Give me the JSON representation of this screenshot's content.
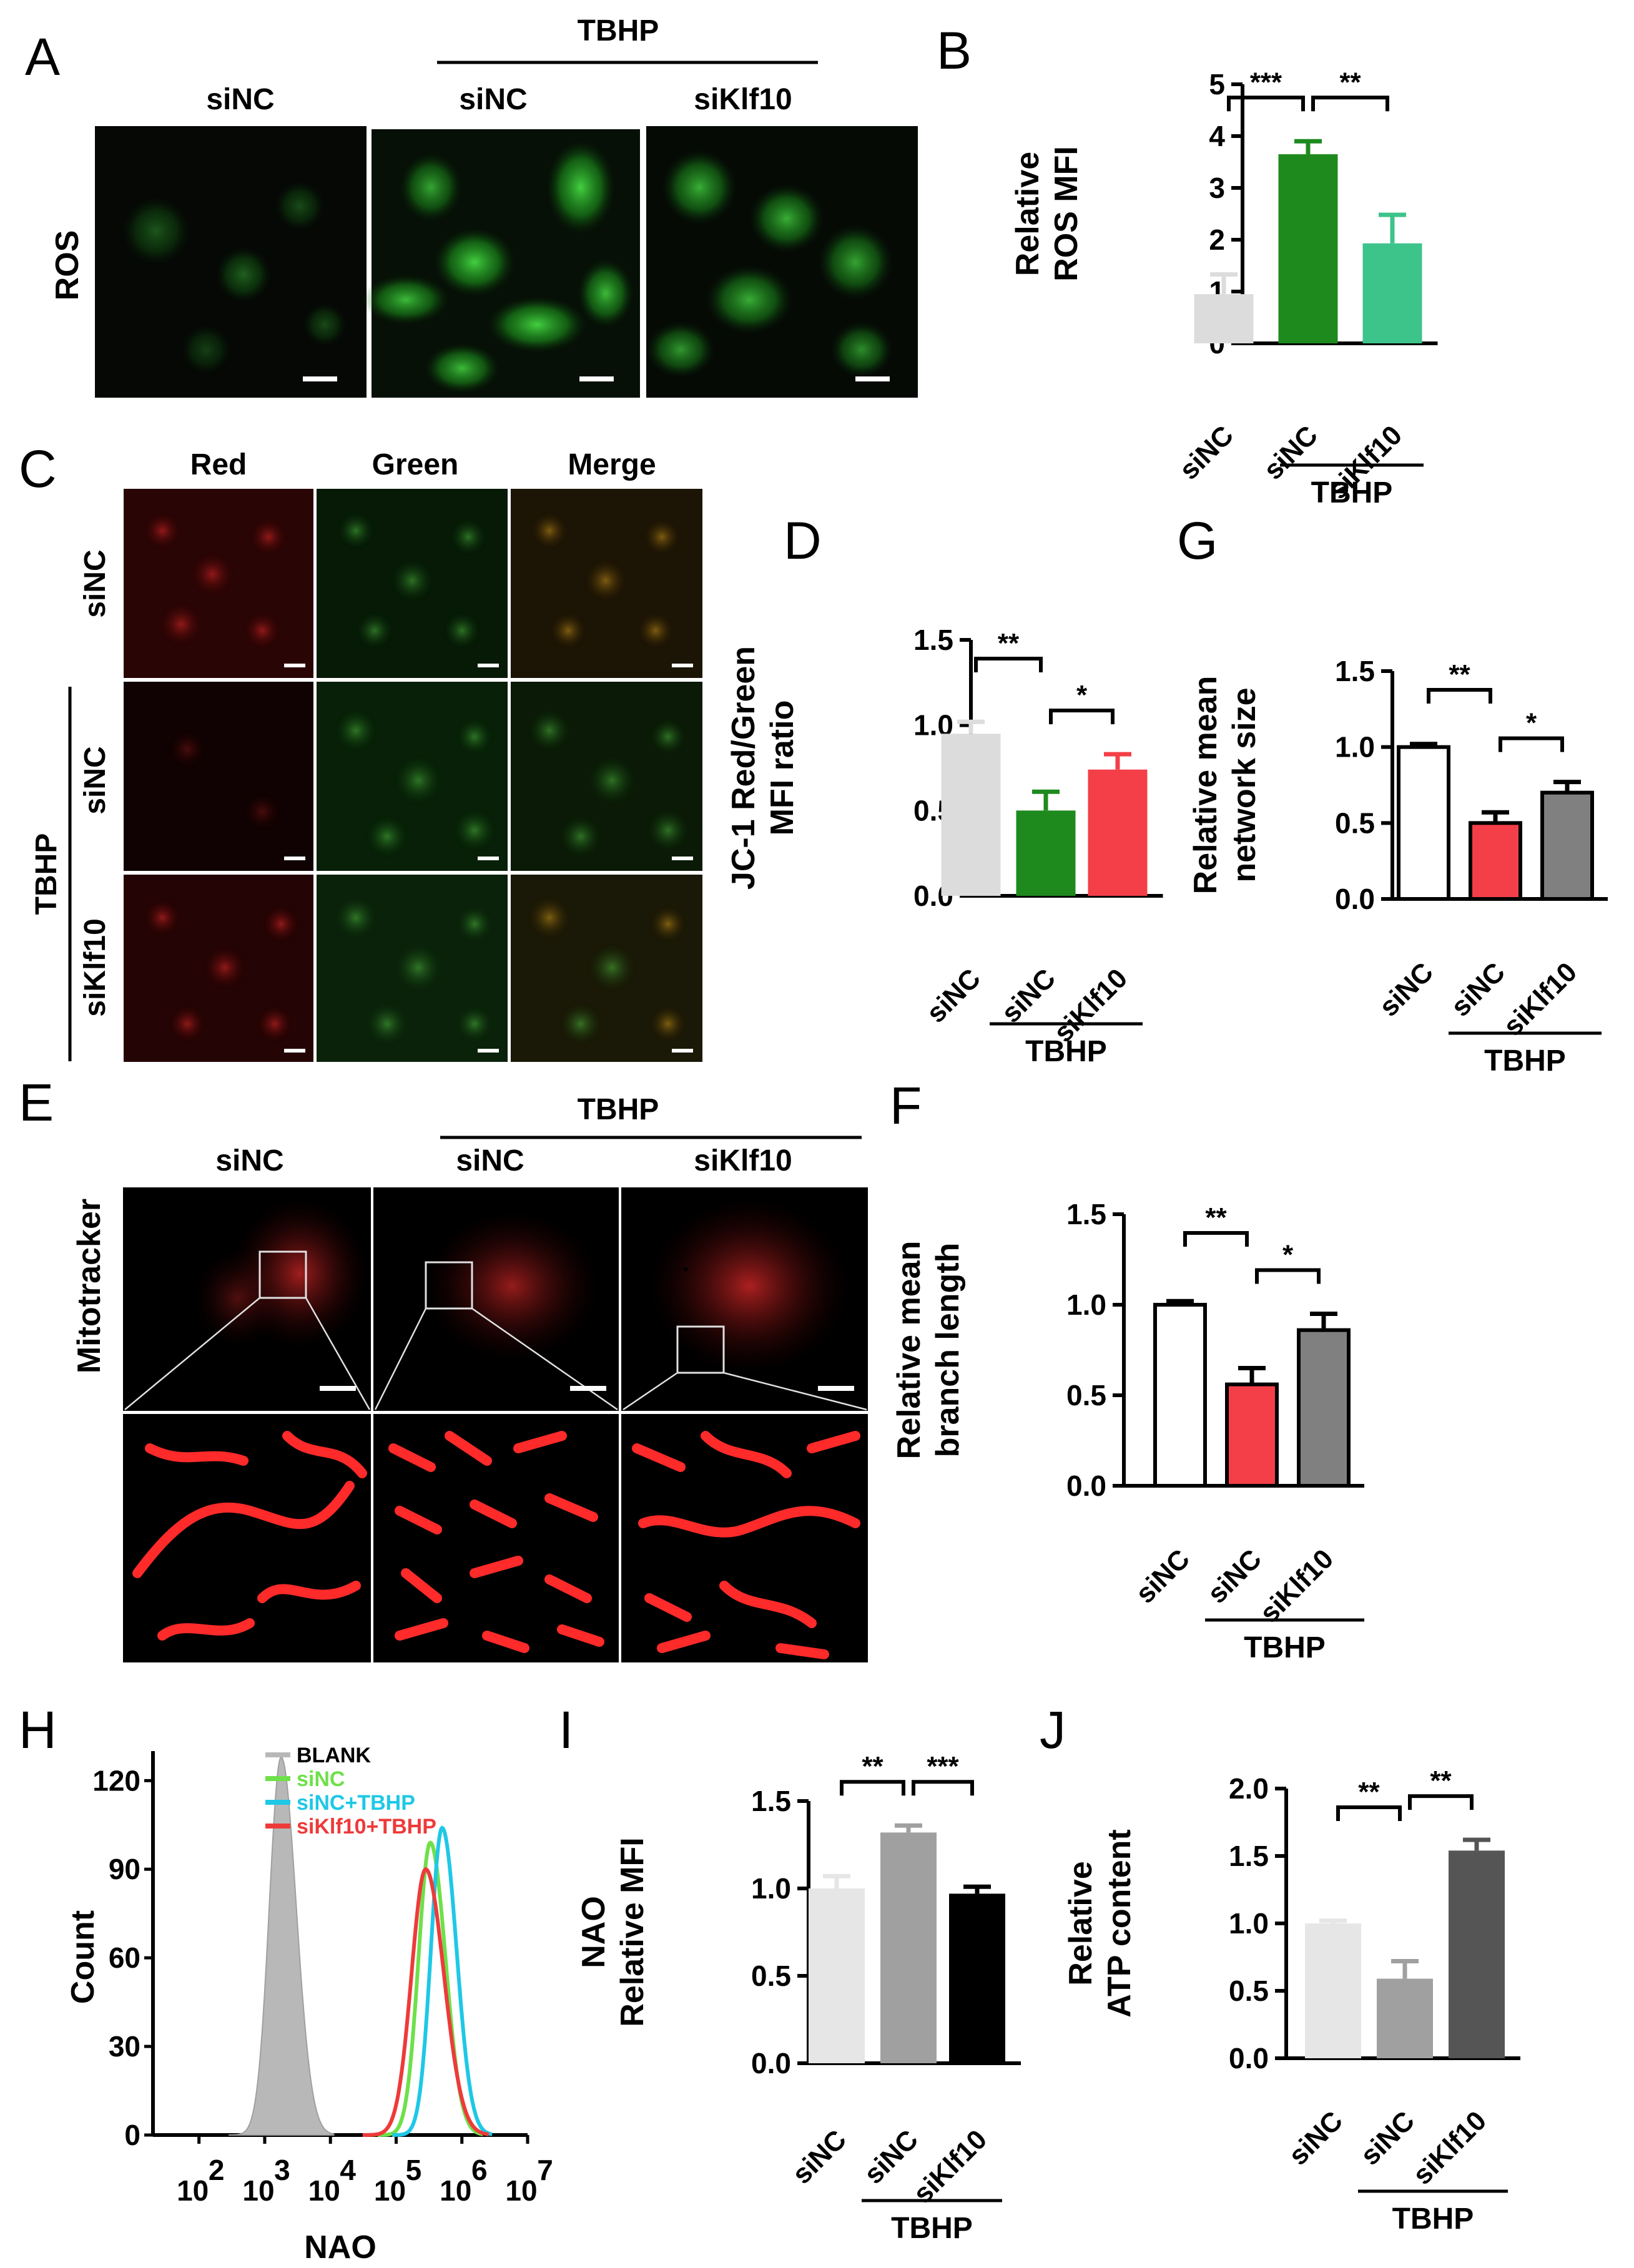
{
  "chart_data": [
    {
      "panel": "A",
      "type": "image",
      "header": "TBHP",
      "columns": [
        "siNC",
        "siNC",
        "siKlf10"
      ],
      "row_label": "ROS"
    },
    {
      "panel": "B",
      "type": "bar",
      "categories": [
        "siNC",
        "siNC",
        "siKlf10"
      ],
      "group_label": "TBHP",
      "values": [
        0.95,
        3.65,
        1.93
      ],
      "errors": [
        0.38,
        0.25,
        0.55
      ],
      "colors": [
        "#dcdcdc",
        "#1e8a1e",
        "#3cc48a"
      ],
      "outline": false,
      "ylabel": "Relative\nROS MFI",
      "ylim": [
        0,
        5
      ],
      "yticks": [
        "0",
        "1",
        "2",
        "3",
        "4",
        "5"
      ],
      "significance": [
        {
          "from": 0,
          "to": 1,
          "label": "***"
        },
        {
          "from": 1,
          "to": 2,
          "label": "**"
        }
      ]
    },
    {
      "panel": "C",
      "type": "image",
      "columns": [
        "Red",
        "Green",
        "Merge"
      ],
      "column_colors": [
        "#e02020",
        "#16a34a",
        "#f0b400"
      ],
      "rows": [
        "siNC",
        "siNC",
        "siKlf10"
      ],
      "row_group": "TBHP"
    },
    {
      "panel": "D",
      "type": "bar",
      "categories": [
        "siNC",
        "siNC",
        "siKlf10"
      ],
      "group_label": "TBHP",
      "values": [
        0.95,
        0.5,
        0.74
      ],
      "errors": [
        0.07,
        0.11,
        0.09
      ],
      "colors": [
        "#dcdcdc",
        "#1e8a1e",
        "#f43f48"
      ],
      "outline": false,
      "ylabel": "JC-1 Red/Green\nMFI ratio",
      "ylim": [
        0,
        1.5
      ],
      "yticks": [
        "0.0",
        "0.5",
        "1.0",
        "1.5"
      ],
      "significance": [
        {
          "from": 0,
          "to": 1,
          "label": "**"
        },
        {
          "from": 1,
          "to": 2,
          "label": "*"
        }
      ]
    },
    {
      "panel": "G",
      "type": "bar",
      "categories": [
        "siNC",
        "siNC",
        "siKlf10"
      ],
      "group_label": "TBHP",
      "values": [
        1.0,
        0.5,
        0.7
      ],
      "errors": [
        0.02,
        0.07,
        0.07
      ],
      "colors": [
        "#ffffff",
        "#f43f48",
        "#808080"
      ],
      "outline": true,
      "ylabel": "Relative mean\nnetwork size",
      "ylim": [
        0,
        1.5
      ],
      "yticks": [
        "0.0",
        "0.5",
        "1.0",
        "1.5"
      ],
      "significance": [
        {
          "from": 0,
          "to": 1,
          "label": "**"
        },
        {
          "from": 1,
          "to": 2,
          "label": "*"
        }
      ]
    },
    {
      "panel": "E",
      "type": "image",
      "header": "TBHP",
      "columns": [
        "siNC",
        "siNC",
        "siKlf10"
      ],
      "row_label": "Mitotracker"
    },
    {
      "panel": "F",
      "type": "bar",
      "categories": [
        "siNC",
        "siNC",
        "siKlf10"
      ],
      "group_label": "TBHP",
      "values": [
        1.0,
        0.56,
        0.86
      ],
      "errors": [
        0.02,
        0.09,
        0.09
      ],
      "colors": [
        "#ffffff",
        "#f43f48",
        "#808080"
      ],
      "outline": true,
      "ylabel": "Relative mean\nbranch length",
      "ylim": [
        0,
        1.5
      ],
      "yticks": [
        "0.0",
        "0.5",
        "1.0",
        "1.5"
      ],
      "significance": [
        {
          "from": 0,
          "to": 1,
          "label": "**"
        },
        {
          "from": 1,
          "to": 2,
          "label": "*"
        }
      ]
    },
    {
      "panel": "H",
      "type": "area",
      "xlabel": "NAO",
      "ylabel": "Count",
      "xscale": "log",
      "xlim": [
        1.3,
        7.0
      ],
      "ylim": [
        0,
        130
      ],
      "yticks": [
        "0",
        "30",
        "60",
        "90",
        "120"
      ],
      "xticks": [
        {
          "base": "10",
          "exp": "2"
        },
        {
          "base": "10",
          "exp": "3"
        },
        {
          "base": "10",
          "exp": "4"
        },
        {
          "base": "10",
          "exp": "5"
        },
        {
          "base": "10",
          "exp": "6"
        },
        {
          "base": "10",
          "exp": "7"
        }
      ],
      "series": [
        {
          "name": "BLANK",
          "color": "#b8b8b8",
          "filled": true,
          "center": 3.25,
          "sigma": 0.2,
          "peak": 128
        },
        {
          "name": "siNC",
          "color": "#6ee04a",
          "filled": false,
          "center": 5.52,
          "sigma": 0.2,
          "peak": 99
        },
        {
          "name": "siNC+TBHP",
          "color": "#1ec8e6",
          "filled": false,
          "center": 5.7,
          "sigma": 0.19,
          "peak": 104
        },
        {
          "name": "siKlf10+TBHP",
          "color": "#ee3a3a",
          "filled": false,
          "center": 5.45,
          "sigma": 0.24,
          "peak": 90
        }
      ]
    },
    {
      "panel": "I",
      "type": "bar",
      "categories": [
        "siNC",
        "siNC",
        "siKlf10"
      ],
      "group_label": "TBHP",
      "values": [
        1.0,
        1.32,
        0.97
      ],
      "errors": [
        0.07,
        0.04,
        0.04
      ],
      "colors": [
        "#e6e6e6",
        "#a0a0a0",
        "#000000"
      ],
      "outline": false,
      "ylabel": "NAO\nRelative MFI",
      "ylim": [
        0,
        1.5
      ],
      "yticks": [
        "0.0",
        "0.5",
        "1.0",
        "1.5"
      ],
      "significance": [
        {
          "from": 0,
          "to": 1,
          "label": "**"
        },
        {
          "from": 1,
          "to": 2,
          "label": "***"
        }
      ]
    },
    {
      "panel": "J",
      "type": "bar",
      "categories": [
        "siNC",
        "siNC",
        "siKlf10"
      ],
      "group_label": "TBHP",
      "values": [
        1.0,
        0.59,
        1.54
      ],
      "errors": [
        0.02,
        0.13,
        0.08
      ],
      "colors": [
        "#e6e6e6",
        "#a0a0a0",
        "#555555"
      ],
      "outline": false,
      "ylabel": "Relative\nATP content",
      "ylim": [
        0,
        2.0
      ],
      "yticks": [
        "0.0",
        "0.5",
        "1.0",
        "1.5",
        "2.0"
      ],
      "significance": [
        {
          "from": 0,
          "to": 1,
          "label": "**"
        },
        {
          "from": 1,
          "to": 2,
          "label": "**"
        }
      ]
    }
  ]
}
